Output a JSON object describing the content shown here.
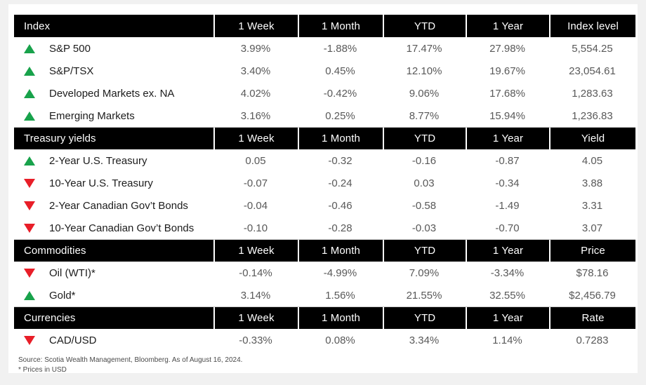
{
  "table": {
    "sections": [
      {
        "title": "Index",
        "columns": [
          "1 Week",
          "1 Month",
          "YTD",
          "1 Year",
          "Index level"
        ],
        "rows": [
          {
            "direction": "up",
            "label": "S&P 500",
            "values": [
              "3.99%",
              "-1.88%",
              "17.47%",
              "27.98%",
              "5,554.25"
            ]
          },
          {
            "direction": "up",
            "label": "S&P/TSX",
            "values": [
              "3.40%",
              "0.45%",
              "12.10%",
              "19.67%",
              "23,054.61"
            ]
          },
          {
            "direction": "up",
            "label": "Developed Markets ex. NA",
            "values": [
              "4.02%",
              "-0.42%",
              "9.06%",
              "17.68%",
              "1,283.63"
            ]
          },
          {
            "direction": "up",
            "label": "Emerging Markets",
            "values": [
              "3.16%",
              "0.25%",
              "8.77%",
              "15.94%",
              "1,236.83"
            ]
          }
        ]
      },
      {
        "title": "Treasury yields",
        "columns": [
          "1 Week",
          "1 Month",
          "YTD",
          "1 Year",
          "Yield"
        ],
        "rows": [
          {
            "direction": "up",
            "label": "2-Year U.S. Treasury",
            "values": [
              "0.05",
              "-0.32",
              "-0.16",
              "-0.87",
              "4.05"
            ]
          },
          {
            "direction": "down",
            "label": "10-Year U.S. Treasury",
            "values": [
              "-0.07",
              "-0.24",
              "0.03",
              "-0.34",
              "3.88"
            ]
          },
          {
            "direction": "down",
            "label": "2-Year Canadian Gov’t Bonds",
            "values": [
              "-0.04",
              "-0.46",
              "-0.58",
              "-1.49",
              "3.31"
            ]
          },
          {
            "direction": "down",
            "label": "10-Year Canadian Gov’t Bonds",
            "values": [
              "-0.10",
              "-0.28",
              "-0.03",
              "-0.70",
              "3.07"
            ]
          }
        ]
      },
      {
        "title": "Commodities",
        "columns": [
          "1 Week",
          "1 Month",
          "YTD",
          "1 Year",
          "Price"
        ],
        "rows": [
          {
            "direction": "down",
            "label": "Oil (WTI)*",
            "values": [
              "-0.14%",
              "-4.99%",
              "7.09%",
              "-3.34%",
              "$78.16"
            ]
          },
          {
            "direction": "up",
            "label": "Gold*",
            "values": [
              "3.14%",
              "1.56%",
              "21.55%",
              "32.55%",
              "$2,456.79"
            ]
          }
        ]
      },
      {
        "title": "Currencies",
        "columns": [
          "1 Week",
          "1 Month",
          "YTD",
          "1 Year",
          "Rate"
        ],
        "rows": [
          {
            "direction": "down",
            "label": "CAD/USD",
            "values": [
              "-0.33%",
              "0.08%",
              "3.34%",
              "1.14%",
              "0.7283"
            ]
          }
        ]
      }
    ]
  },
  "footer": {
    "source": "Source: Scotia Wealth Management, Bloomberg. As of August 16, 2024.",
    "note": "* Prices in USD"
  },
  "colors": {
    "positive": "#18a24b",
    "negative": "#e81e28",
    "header_bg": "#000000",
    "value_text": "#595959"
  }
}
